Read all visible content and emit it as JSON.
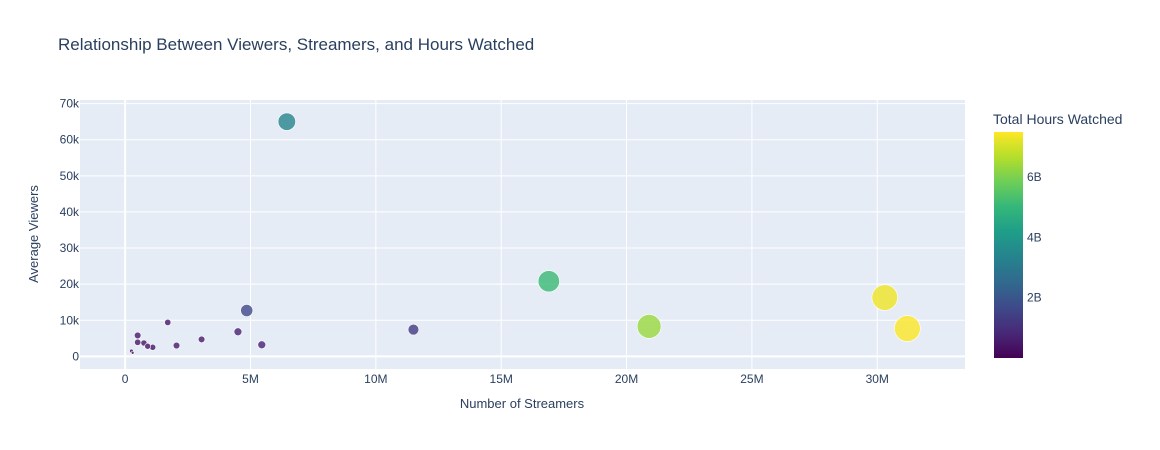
{
  "chart_data": {
    "type": "scatter",
    "title": "Relationship Between Viewers, Streamers, and Hours Watched",
    "xlabel": "Number of Streamers",
    "ylabel": "Average Viewers",
    "xlim": [
      -1800000,
      33500000
    ],
    "ylim": [
      -3500000,
      71000
    ],
    "ylim_note": "",
    "x_ticks": [
      0,
      5000000,
      10000000,
      15000000,
      20000000,
      25000000,
      30000000
    ],
    "x_tick_labels": [
      "0",
      "5M",
      "10M",
      "15M",
      "20M",
      "25M",
      "30M"
    ],
    "y_ticks": [
      0,
      10000,
      20000,
      30000,
      40000,
      50000,
      60000,
      70000
    ],
    "y_tick_labels": [
      "0",
      "10k",
      "20k",
      "30k",
      "40k",
      "50k",
      "60k",
      "70k"
    ],
    "grid": true,
    "colorbar": {
      "title": "Total Hours Watched",
      "range": [
        0,
        7500000000
      ],
      "ticks": [
        2000000000,
        4000000000,
        6000000000
      ],
      "tick_labels": [
        "2B",
        "4B",
        "6B"
      ],
      "colorscale": "viridis"
    },
    "points": [
      {
        "x": 6450000,
        "y": 65000,
        "hours": 3400000000
      },
      {
        "x": 4850000,
        "y": 12700,
        "hours": 1650000000
      },
      {
        "x": 11500000,
        "y": 7400,
        "hours": 1300000000
      },
      {
        "x": 16900000,
        "y": 20800,
        "hours": 5100000000
      },
      {
        "x": 20900000,
        "y": 8300,
        "hours": 6350000000
      },
      {
        "x": 30300000,
        "y": 16300,
        "hours": 7350000000
      },
      {
        "x": 31200000,
        "y": 7700,
        "hours": 7500000000
      },
      {
        "x": 4500000,
        "y": 6800,
        "hours": 700000000
      },
      {
        "x": 5450000,
        "y": 3200,
        "hours": 700000000
      },
      {
        "x": 3050000,
        "y": 4700,
        "hours": 500000000
      },
      {
        "x": 1700000,
        "y": 9400,
        "hours": 450000000
      },
      {
        "x": 2050000,
        "y": 3000,
        "hours": 500000000
      },
      {
        "x": 500000,
        "y": 5800,
        "hours": 500000000
      },
      {
        "x": 500000,
        "y": 3900,
        "hours": 450000000
      },
      {
        "x": 750000,
        "y": 3700,
        "hours": 420000000
      },
      {
        "x": 900000,
        "y": 2800,
        "hours": 400000000
      },
      {
        "x": 1100000,
        "y": 2500,
        "hours": 420000000
      },
      {
        "x": 250000,
        "y": 1500,
        "hours": 150000000
      },
      {
        "x": 300000,
        "y": 1000,
        "hours": 100000000
      }
    ]
  }
}
